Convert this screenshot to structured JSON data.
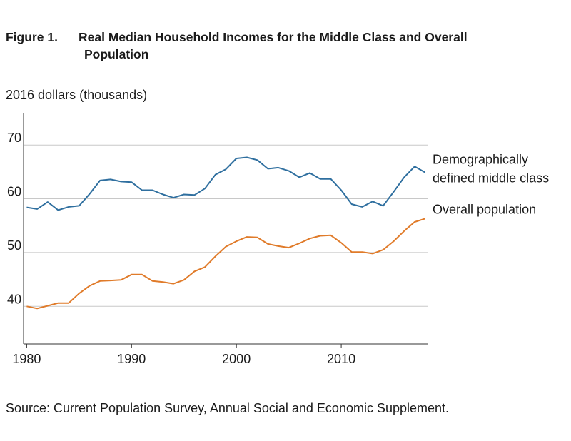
{
  "figure": {
    "number": "Figure 1.",
    "title_line1": "Real Median Household Incomes for the Middle Class and Overall",
    "title_line2": "Population",
    "units": "2016 dollars (thousands)",
    "source": "Source: Current Population Survey, Annual Social and Economic Supplement."
  },
  "chart_data": {
    "type": "line",
    "title": "Real Median Household Incomes for the Middle Class and Overall Population",
    "ylabel": "2016 dollars (thousands)",
    "xlabel": "",
    "xlim": [
      1979.7,
      2018.3
    ],
    "ylim": [
      33,
      76
    ],
    "xticks": [
      1980,
      1990,
      2000,
      2010
    ],
    "yticks": [
      40,
      50,
      60,
      70
    ],
    "grid": "horizontal",
    "x": [
      1980,
      1981,
      1982,
      1983,
      1984,
      1985,
      1986,
      1987,
      1988,
      1989,
      1990,
      1991,
      1992,
      1993,
      1994,
      1995,
      1996,
      1997,
      1998,
      1999,
      2000,
      2001,
      2002,
      2003,
      2004,
      2005,
      2006,
      2007,
      2008,
      2009,
      2010,
      2011,
      2012,
      2013,
      2014,
      2015,
      2016,
      2017,
      2018
    ],
    "series": [
      {
        "name": "Demographically defined middle class",
        "label_lines": [
          "Demographically",
          "defined middle class"
        ],
        "color": "#2f6f9f",
        "values": [
          58.4,
          58.1,
          59.4,
          57.9,
          58.5,
          58.7,
          60.9,
          63.4,
          63.6,
          63.2,
          63.1,
          61.6,
          61.6,
          60.8,
          60.2,
          60.8,
          60.7,
          61.9,
          64.5,
          65.5,
          67.5,
          67.7,
          67.2,
          65.6,
          65.8,
          65.2,
          64.0,
          64.8,
          63.7,
          63.7,
          61.6,
          59.0,
          58.5,
          59.5,
          58.7,
          61.3,
          64.0,
          66.0,
          64.9
        ]
      },
      {
        "name": "Overall population",
        "label_lines": [
          "Overall population"
        ],
        "color": "#e07b2a",
        "values": [
          40.0,
          39.6,
          40.1,
          40.6,
          40.6,
          42.4,
          43.8,
          44.7,
          44.8,
          44.9,
          45.9,
          45.9,
          44.7,
          44.5,
          44.2,
          44.9,
          46.5,
          47.3,
          49.3,
          51.1,
          52.1,
          52.9,
          52.8,
          51.6,
          51.2,
          50.9,
          51.7,
          52.6,
          53.1,
          53.2,
          51.8,
          50.1,
          50.1,
          49.8,
          50.5,
          52.1,
          54.0,
          55.7,
          56.3
        ]
      }
    ]
  }
}
